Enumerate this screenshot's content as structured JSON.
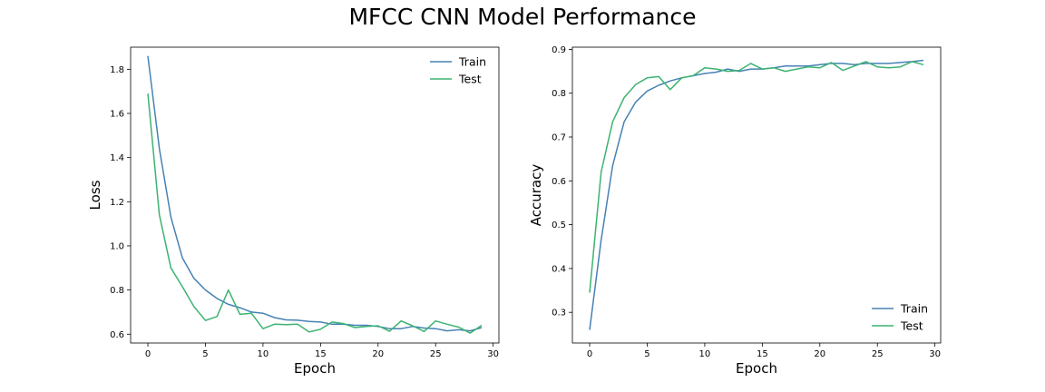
{
  "figure": {
    "title": "MFCC CNN Model Performance"
  },
  "chart_data": [
    {
      "type": "line",
      "title": "",
      "xlabel": "Epoch",
      "ylabel": "Loss",
      "xlim": [
        -1.5,
        30.5
      ],
      "ylim": [
        0.56,
        1.9
      ],
      "xticks": [
        0,
        5,
        10,
        15,
        20,
        25,
        30
      ],
      "yticks": [
        0.6,
        0.8,
        1.0,
        1.2,
        1.4,
        1.6,
        1.8
      ],
      "ytick_decimals": 1,
      "grid": false,
      "legend": "top-right",
      "x": [
        0,
        1,
        2,
        3,
        4,
        5,
        6,
        7,
        8,
        9,
        10,
        11,
        12,
        13,
        14,
        15,
        16,
        17,
        18,
        19,
        20,
        21,
        22,
        23,
        24,
        25,
        26,
        27,
        28,
        29
      ],
      "series": [
        {
          "name": "Train",
          "color": "#4682b4",
          "values": [
            1.86,
            1.44,
            1.13,
            0.945,
            0.853,
            0.8,
            0.762,
            0.735,
            0.72,
            0.7,
            0.695,
            0.675,
            0.665,
            0.663,
            0.658,
            0.655,
            0.645,
            0.645,
            0.64,
            0.64,
            0.635,
            0.625,
            0.625,
            0.635,
            0.628,
            0.625,
            0.615,
            0.62,
            0.615,
            0.63
          ]
        },
        {
          "name": "Test",
          "color": "#3cb371",
          "values": [
            1.69,
            1.14,
            0.9,
            0.815,
            0.725,
            0.662,
            0.68,
            0.8,
            0.69,
            0.695,
            0.625,
            0.645,
            0.643,
            0.645,
            0.61,
            0.622,
            0.655,
            0.648,
            0.63,
            0.635,
            0.638,
            0.613,
            0.66,
            0.638,
            0.612,
            0.66,
            0.645,
            0.632,
            0.605,
            0.64
          ]
        }
      ]
    },
    {
      "type": "line",
      "title": "",
      "xlabel": "Epoch",
      "ylabel": "Accuracy",
      "xlim": [
        -1.5,
        30.5
      ],
      "ylim": [
        0.23,
        0.905
      ],
      "xticks": [
        0,
        5,
        10,
        15,
        20,
        25,
        30
      ],
      "yticks": [
        0.3,
        0.4,
        0.5,
        0.6,
        0.7,
        0.8,
        0.9
      ],
      "ytick_decimals": 1,
      "grid": false,
      "legend": "bottom-right",
      "x": [
        0,
        1,
        2,
        3,
        4,
        5,
        6,
        7,
        8,
        9,
        10,
        11,
        12,
        13,
        14,
        15,
        16,
        17,
        18,
        19,
        20,
        21,
        22,
        23,
        24,
        25,
        26,
        27,
        28,
        29
      ],
      "series": [
        {
          "name": "Train",
          "color": "#4682b4",
          "values": [
            0.26,
            0.465,
            0.635,
            0.735,
            0.78,
            0.805,
            0.818,
            0.828,
            0.835,
            0.84,
            0.845,
            0.848,
            0.855,
            0.85,
            0.855,
            0.855,
            0.858,
            0.862,
            0.862,
            0.862,
            0.865,
            0.868,
            0.868,
            0.865,
            0.868,
            0.868,
            0.868,
            0.87,
            0.872,
            0.875
          ]
        },
        {
          "name": "Test",
          "color": "#3cb371",
          "values": [
            0.345,
            0.62,
            0.735,
            0.79,
            0.82,
            0.835,
            0.838,
            0.808,
            0.835,
            0.84,
            0.858,
            0.855,
            0.85,
            0.852,
            0.868,
            0.855,
            0.858,
            0.85,
            0.855,
            0.86,
            0.858,
            0.87,
            0.852,
            0.862,
            0.872,
            0.86,
            0.858,
            0.86,
            0.872,
            0.865
          ]
        }
      ]
    }
  ]
}
